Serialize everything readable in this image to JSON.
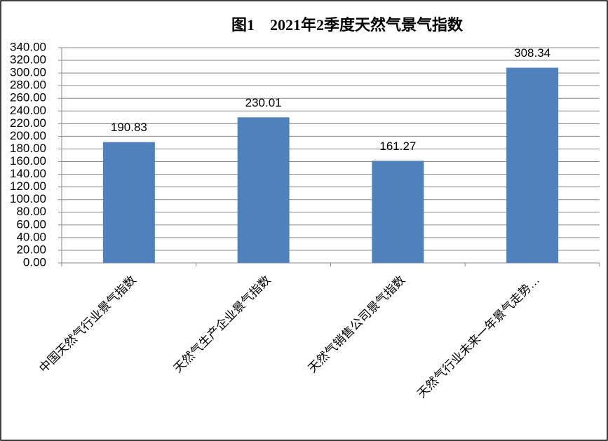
{
  "chart_data": {
    "type": "bar",
    "title": "图1　2021年2季度天然气景气指数",
    "categories": [
      "中国天然气行业景气指数",
      "天然气生产企业景气指数",
      "天然气销售公司景气指数",
      "天然气行业未来一年景气走势…"
    ],
    "values": [
      190.83,
      230.01,
      161.27,
      308.34
    ],
    "color": "#4f81bd",
    "ylim": [
      0,
      340
    ],
    "yticks": [
      {
        "value": 0,
        "label": "0.00"
      },
      {
        "value": 20,
        "label": "20.00"
      },
      {
        "value": 40,
        "label": "40.00"
      },
      {
        "value": 60,
        "label": "60.00"
      },
      {
        "value": 80,
        "label": "80.00"
      },
      {
        "value": 100,
        "label": "100.00"
      },
      {
        "value": 120,
        "label": "120.00"
      },
      {
        "value": 140,
        "label": "140.00"
      },
      {
        "value": 160,
        "label": "160.00"
      },
      {
        "value": 180,
        "label": "180.00"
      },
      {
        "value": 200,
        "label": "200.00"
      },
      {
        "value": 220,
        "label": "220.00"
      },
      {
        "value": 240,
        "label": "240.00"
      },
      {
        "value": 260,
        "label": "260.00"
      },
      {
        "value": 280,
        "label": "280.00"
      },
      {
        "value": 300,
        "label": "300.00"
      },
      {
        "value": 320,
        "label": "320.00"
      },
      {
        "value": 340,
        "label": "340.00"
      }
    ],
    "grid": true
  }
}
